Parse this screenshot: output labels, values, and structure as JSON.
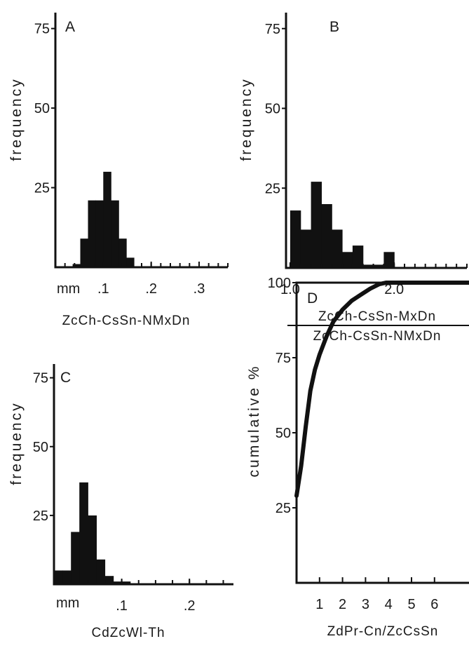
{
  "chart_data": [
    {
      "type": "bar",
      "panel_label": "A",
      "ylabel": "frequency",
      "xlabel": "ZcCh-CsSn-NMxDn",
      "x_unit_label": "mm",
      "yticks": [
        "75",
        "50",
        "25"
      ],
      "ytick_values": [
        75,
        50,
        25
      ],
      "xticks": [
        ".1",
        ".2",
        ".3"
      ],
      "xtick_values": [
        0.1,
        0.2,
        0.3
      ],
      "ylim": [
        0,
        80
      ],
      "xlim": [
        0.0,
        0.36
      ],
      "bin_width": 0.016,
      "bin_starts": [
        0.036,
        0.052,
        0.068,
        0.084,
        0.1,
        0.116,
        0.132,
        0.148
      ],
      "values": [
        1,
        9,
        21,
        21,
        30,
        21,
        9,
        3
      ]
    },
    {
      "type": "bar",
      "panel_label": "B",
      "ylabel": "frequency",
      "xlabel_numerator": "ZcCh-CsSn-MxDn",
      "xlabel_denominator": "ZcCh-CsSn-NMxDn",
      "yticks": [
        "75",
        "50",
        "25"
      ],
      "ytick_values": [
        75,
        50,
        25
      ],
      "xticks": [
        "1.0",
        "2.0"
      ],
      "xtick_values": [
        1.0,
        2.0
      ],
      "ylim": [
        0,
        80
      ],
      "xlim": [
        0.96,
        2.7
      ],
      "bin_width": 0.1,
      "bin_starts": [
        1.0,
        1.1,
        1.2,
        1.3,
        1.4,
        1.5,
        1.6,
        1.7,
        1.8,
        1.9
      ],
      "values": [
        18,
        12,
        27,
        20,
        12,
        5,
        7,
        1,
        1,
        5
      ]
    },
    {
      "type": "bar",
      "panel_label": "C",
      "ylabel": "frequency",
      "xlabel": "CdZcWl-Th",
      "x_unit_label": "mm",
      "yticks": [
        "75",
        "50",
        "25"
      ],
      "ytick_values": [
        75,
        50,
        25
      ],
      "xticks": [
        ".1",
        ".2"
      ],
      "xtick_values": [
        0.1,
        0.2
      ],
      "ylim": [
        0,
        80
      ],
      "xlim": [
        0.0,
        0.265
      ],
      "bin_width": 0.0125,
      "bin_starts": [
        0.0,
        0.0125,
        0.025,
        0.0375,
        0.05,
        0.0625,
        0.075,
        0.0875,
        0.1
      ],
      "values": [
        5,
        5,
        19,
        37,
        25,
        9,
        3,
        1,
        1
      ]
    },
    {
      "type": "line",
      "panel_label": "D",
      "ylabel": "cumulative %",
      "xlabel": "ZdPr-Cn/ZcCsSn",
      "yticks": [
        "100",
        "75",
        "50",
        "25"
      ],
      "ytick_values": [
        100,
        75,
        50,
        25
      ],
      "xticks": [
        "1",
        "2",
        "3",
        "4",
        "5",
        "6"
      ],
      "xtick_values": [
        1,
        2,
        3,
        4,
        5,
        6
      ],
      "ylim": [
        0,
        100
      ],
      "xlim": [
        0,
        7.5
      ],
      "x": [
        0.0,
        0.2,
        0.4,
        0.6,
        0.8,
        1.0,
        1.3,
        1.6,
        2.0,
        2.4,
        2.8,
        3.2,
        3.6,
        3.9,
        4.5,
        5.5,
        7.5
      ],
      "y": [
        29,
        39,
        52,
        64,
        71,
        76,
        82,
        87,
        91,
        94,
        96,
        98,
        99.5,
        100,
        100,
        100,
        100
      ]
    }
  ]
}
